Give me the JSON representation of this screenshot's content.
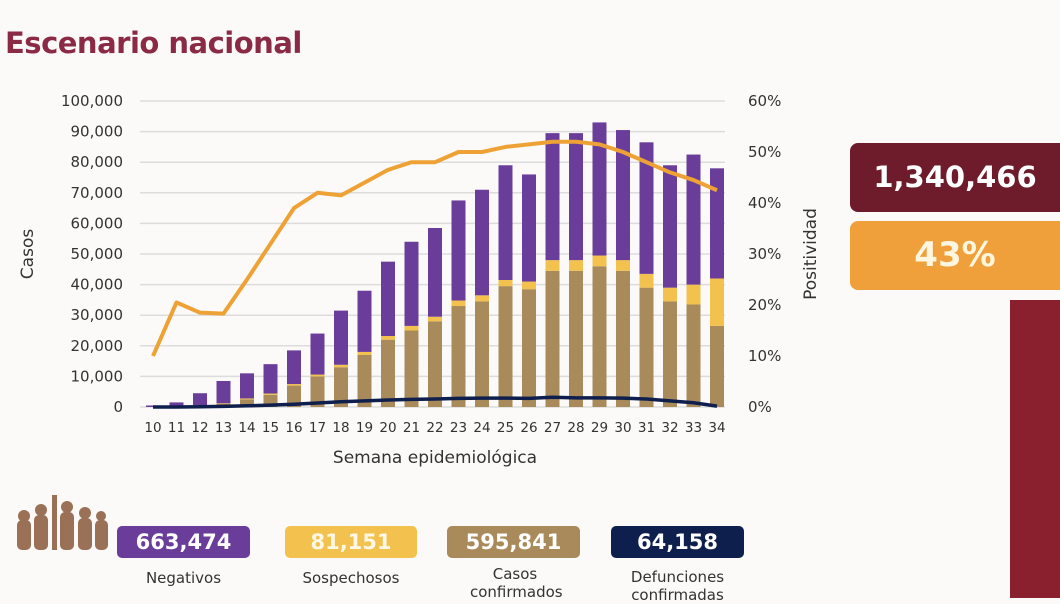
{
  "title": "Escenario nacional",
  "summary": {
    "total": "1,340,466",
    "positivity": "43%"
  },
  "legend": [
    {
      "value": "663,474",
      "label": "Negativos",
      "color": "#6a3d9a"
    },
    {
      "value": "81,151",
      "label": "Sospechosos",
      "color": "#f2c14e"
    },
    {
      "value": "595,841",
      "label": "Casos confirmados",
      "color": "#a98a5a"
    },
    {
      "value": "64,158",
      "label": "Defunciones confirmadas",
      "color": "#0f1f4d"
    }
  ],
  "colors": {
    "positivity": "#eea236",
    "title": "#8a2a45",
    "maroon": "#6e1c2c"
  },
  "chart_data": {
    "type": "bar",
    "stacked": true,
    "xlabel": "Semana epidemiológica",
    "ylabel": "Casos",
    "y2label": "Positividad",
    "ylim": [
      0,
      100000
    ],
    "y2lim": [
      0,
      60
    ],
    "yticks": [
      "0",
      "10,000",
      "20,000",
      "30,000",
      "40,000",
      "50,000",
      "60,000",
      "70,000",
      "80,000",
      "90,000",
      "100,000"
    ],
    "y2ticks": [
      "0%",
      "10%",
      "20%",
      "30%",
      "40%",
      "50%",
      "60%"
    ],
    "grid": true,
    "categories": [
      "10",
      "11",
      "12",
      "13",
      "14",
      "15",
      "16",
      "17",
      "18",
      "19",
      "20",
      "21",
      "22",
      "23",
      "24",
      "25",
      "26",
      "27",
      "28",
      "29",
      "30",
      "31",
      "32",
      "33",
      "34"
    ],
    "series": [
      {
        "name": "Casos confirmados",
        "kind": "bar",
        "values": [
          0,
          200,
          500,
          1000,
          2500,
          4000,
          7000,
          10000,
          13000,
          17000,
          22000,
          25000,
          28000,
          33000,
          34500,
          39500,
          38500,
          44500,
          44500,
          46000,
          44500,
          39000,
          34500,
          33500,
          26500
        ]
      },
      {
        "name": "Sospechosos",
        "kind": "bar",
        "values": [
          0,
          0,
          100,
          200,
          300,
          400,
          500,
          600,
          800,
          1000,
          1200,
          1500,
          1500,
          1800,
          2000,
          2000,
          2500,
          3500,
          3500,
          3500,
          3500,
          4500,
          4500,
          6500,
          15500
        ]
      },
      {
        "name": "Negativos",
        "kind": "bar",
        "values": [
          500,
          1300,
          3900,
          7300,
          8200,
          9600,
          11000,
          13400,
          17700,
          20000,
          24300,
          27500,
          29000,
          32700,
          34500,
          37500,
          35000,
          41500,
          41500,
          43500,
          42500,
          43000,
          40000,
          42500,
          36000
        ]
      },
      {
        "name": "Defunciones confirmadas",
        "kind": "line",
        "values": [
          0,
          0,
          100,
          200,
          400,
          600,
          900,
          1300,
          1700,
          2000,
          2300,
          2500,
          2600,
          2800,
          2900,
          2900,
          2800,
          3200,
          3000,
          3000,
          2900,
          2600,
          2000,
          1400,
          300
        ]
      },
      {
        "name": "Positividad",
        "kind": "line",
        "axis": "right",
        "values": [
          10,
          20.5,
          18.5,
          18.3,
          25,
          32,
          39,
          42,
          41.5,
          44,
          46.5,
          48,
          48,
          50,
          50,
          51,
          51.5,
          52,
          52,
          51.5,
          50,
          48,
          46,
          44.5,
          42.5
        ]
      }
    ]
  }
}
